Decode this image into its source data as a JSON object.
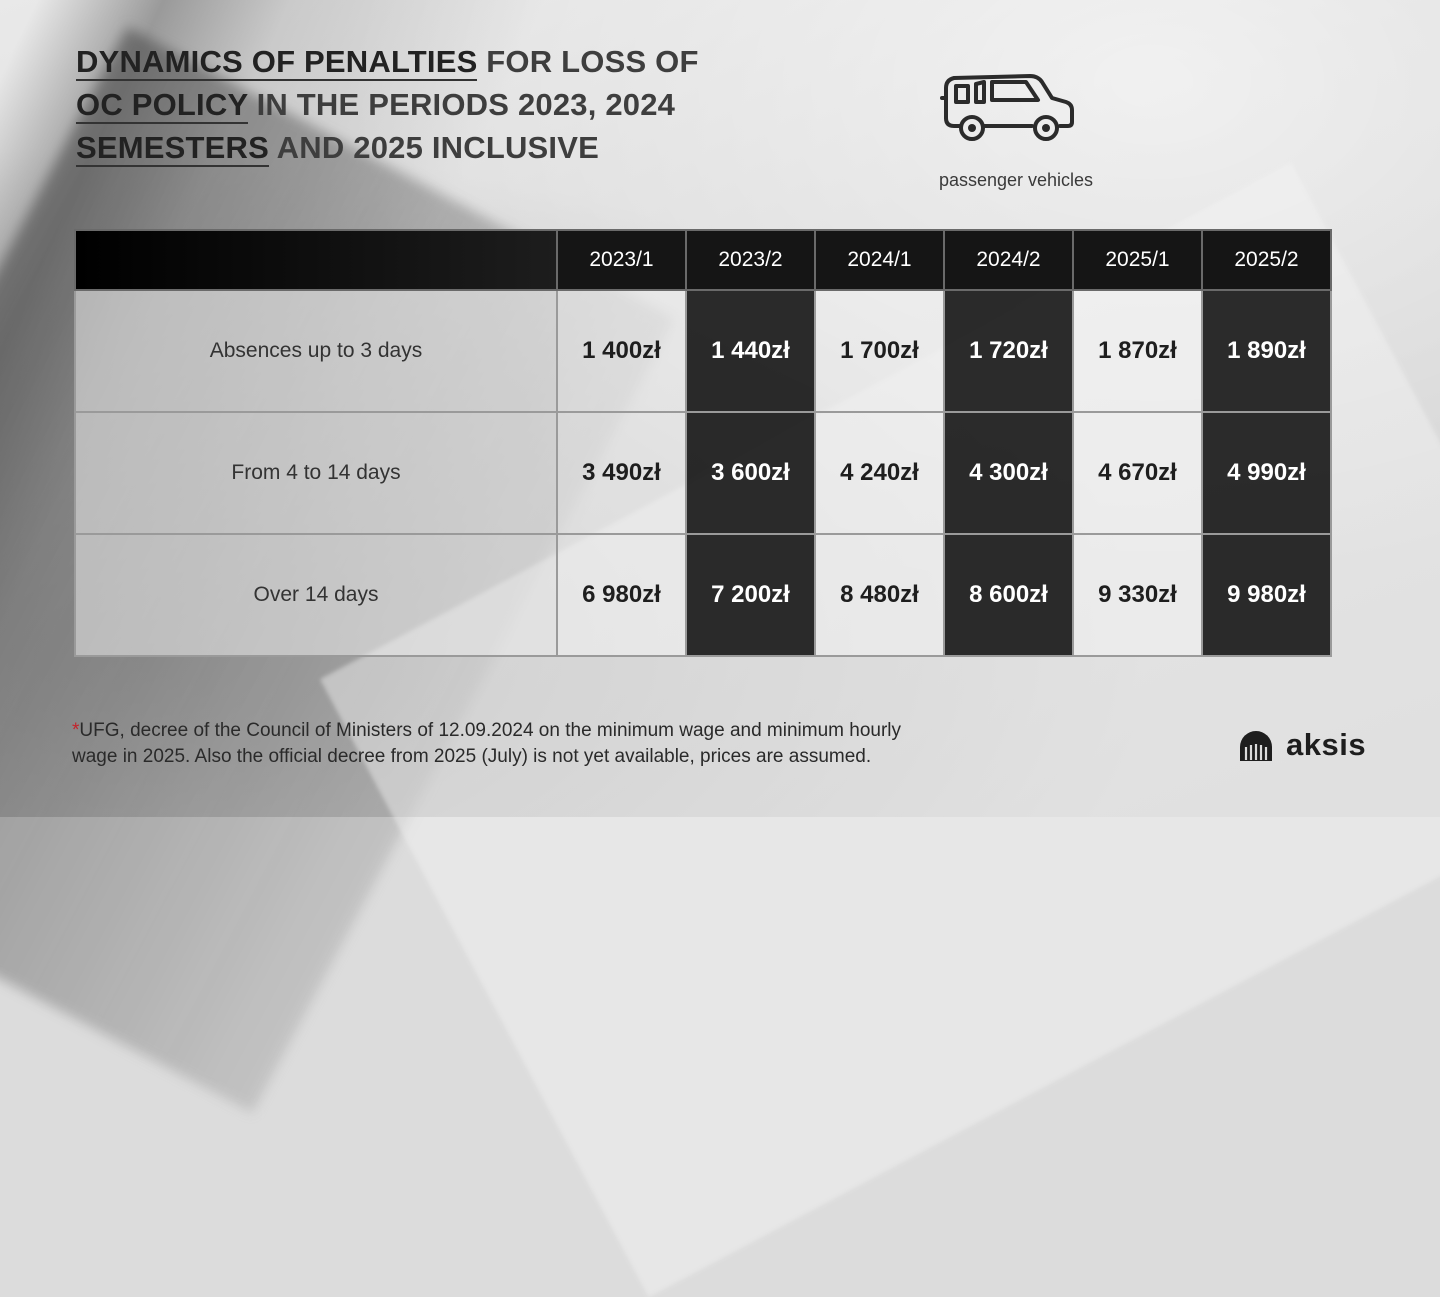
{
  "title": {
    "line1_strong": "DYNAMICS OF PENALTIES",
    "line1_rest": " FOR LOSS OF",
    "line2_strong": "OC POLICY",
    "line2_rest": " IN THE PERIODS 2023, 2024",
    "line3_strong": "SEMESTERS",
    "line3_rest": " AND 2025 INCLUSIVE"
  },
  "vehicle": {
    "icon": "car-icon",
    "label": "passenger vehicles"
  },
  "table": {
    "columns": [
      "2023/1",
      "2023/2",
      "2024/1",
      "2024/2",
      "2025/1",
      "2025/2"
    ],
    "rows": [
      {
        "label": "Absences up to 3 days",
        "values": [
          "1 400zł",
          "1 440zł",
          "1 700zł",
          "1 720zł",
          "1 870zł",
          "1 890zł"
        ]
      },
      {
        "label": "From 4 to 14 days",
        "values": [
          "3 490zł",
          "3 600zł",
          "4 240zł",
          "4 300zł",
          "4 670zł",
          "4 990zł"
        ]
      },
      {
        "label": "Over 14 days",
        "values": [
          "6 980zł",
          "7 200zł",
          "8 480zł",
          "8 600zł",
          "9 330zł",
          "9 980zł"
        ]
      }
    ]
  },
  "footnote": {
    "marker": "*",
    "line1": "UFG, decree of the Council of Ministers of 12.09.2024 on the minimum wage and minimum hourly",
    "line2": "wage in 2025. Also the official decree from 2025 (July) is not yet available, prices are assumed."
  },
  "brand": {
    "name": "aksis",
    "icon": "aksis-logo-icon"
  },
  "colors": {
    "dark_cell": "#1c1c1c",
    "light_cell": "#f0f0f0",
    "footnote_marker": "#c4232b"
  }
}
